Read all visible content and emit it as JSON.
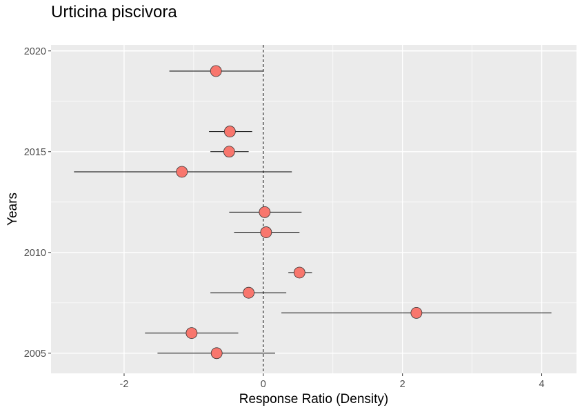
{
  "chart_data": {
    "type": "scatter",
    "title": "Urticina piscivora",
    "xlabel": "Response Ratio (Density)",
    "ylabel": "Years",
    "xlim": [
      -3.05,
      4.5
    ],
    "ylim": [
      2004.0,
      2020.3
    ],
    "x_ticks": [
      -2,
      0,
      2,
      4
    ],
    "y_ticks": [
      2005,
      2010,
      2015,
      2020
    ],
    "x_tick_labels": [
      "-2",
      "0",
      "2",
      "4"
    ],
    "y_tick_labels": [
      "2005",
      "2010",
      "2015",
      "2020"
    ],
    "reference_line_x": 0,
    "reference_line_style": "dashed",
    "grid": true,
    "panel_color": "#ebebeb",
    "point_color": "#f8766d",
    "series": [
      {
        "points": [
          {
            "year": 2019,
            "x": -0.68,
            "lo": -1.35,
            "hi": 0.0
          },
          {
            "year": 2016,
            "x": -0.48,
            "lo": -0.78,
            "hi": -0.16
          },
          {
            "year": 2015,
            "x": -0.49,
            "lo": -0.76,
            "hi": -0.21
          },
          {
            "year": 2014,
            "x": -1.17,
            "lo": -2.72,
            "hi": 0.41
          },
          {
            "year": 2012,
            "x": 0.02,
            "lo": -0.49,
            "hi": 0.55
          },
          {
            "year": 2011,
            "x": 0.04,
            "lo": -0.42,
            "hi": 0.52
          },
          {
            "year": 2009,
            "x": 0.52,
            "lo": 0.36,
            "hi": 0.7
          },
          {
            "year": 2008,
            "x": -0.21,
            "lo": -0.76,
            "hi": 0.33
          },
          {
            "year": 2007,
            "x": 2.2,
            "lo": 0.26,
            "hi": 4.14
          },
          {
            "year": 2006,
            "x": -1.03,
            "lo": -1.7,
            "hi": -0.36
          },
          {
            "year": 2005,
            "x": -0.67,
            "lo": -1.52,
            "hi": 0.17
          }
        ]
      }
    ]
  }
}
